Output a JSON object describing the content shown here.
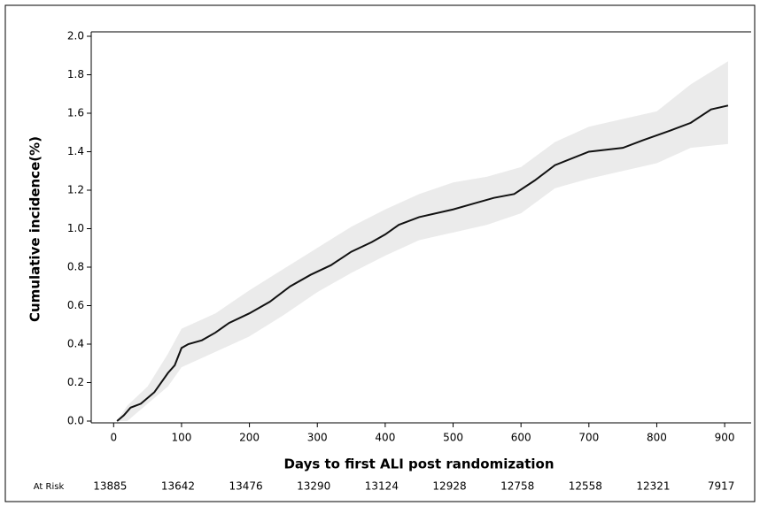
{
  "chart_data": {
    "type": "line",
    "ylabel": "Cumulative incidence(%)",
    "xlabel": "Days to first ALI post randomization",
    "x": [
      5,
      15,
      25,
      40,
      60,
      80,
      90,
      100,
      110,
      130,
      150,
      170,
      200,
      230,
      260,
      290,
      320,
      350,
      380,
      400,
      420,
      450,
      500,
      530,
      560,
      590,
      620,
      650,
      700,
      750,
      780,
      820,
      850,
      880,
      905
    ],
    "values": [
      0,
      0.03,
      0.07,
      0.09,
      0.15,
      0.25,
      0.29,
      0.38,
      0.4,
      0.42,
      0.46,
      0.51,
      0.56,
      0.62,
      0.7,
      0.76,
      0.81,
      0.88,
      0.93,
      0.97,
      1.02,
      1.06,
      1.1,
      1.13,
      1.16,
      1.18,
      1.25,
      1.33,
      1.4,
      1.42,
      1.46,
      1.51,
      1.55,
      1.62,
      1.64
    ],
    "color": "#111111",
    "band_x": [
      5,
      20,
      50,
      80,
      100,
      150,
      200,
      250,
      300,
      350,
      400,
      450,
      500,
      550,
      600,
      650,
      700,
      750,
      800,
      850,
      905
    ],
    "band_upper": [
      0,
      0.08,
      0.18,
      0.35,
      0.48,
      0.56,
      0.68,
      0.79,
      0.9,
      1.01,
      1.1,
      1.18,
      1.24,
      1.27,
      1.32,
      1.45,
      1.53,
      1.57,
      1.61,
      1.75,
      1.87
    ],
    "band_lower": [
      0,
      0,
      0.09,
      0.18,
      0.28,
      0.36,
      0.44,
      0.55,
      0.67,
      0.77,
      0.86,
      0.94,
      0.98,
      1.02,
      1.08,
      1.21,
      1.26,
      1.3,
      1.34,
      1.42,
      1.44
    ],
    "band_color": "#ebebeb",
    "xlim": [
      -33,
      939
    ],
    "ylim": [
      0,
      2.0
    ],
    "xticks": [
      0,
      100,
      200,
      300,
      400,
      500,
      600,
      700,
      800,
      900
    ],
    "yticks": [
      {
        "value": 0,
        "label": "0.0"
      },
      0.2,
      0.4,
      0.6,
      0.8,
      {
        "value": 1,
        "label": "1.0"
      },
      1.2,
      1.4,
      1.6,
      1.8,
      {
        "value": 2,
        "label": "2.0"
      }
    ],
    "at_risk": {
      "label": "At Risk",
      "values": [
        13885,
        13642,
        13476,
        13290,
        13124,
        12928,
        12758,
        12558,
        12321,
        7917
      ]
    }
  }
}
